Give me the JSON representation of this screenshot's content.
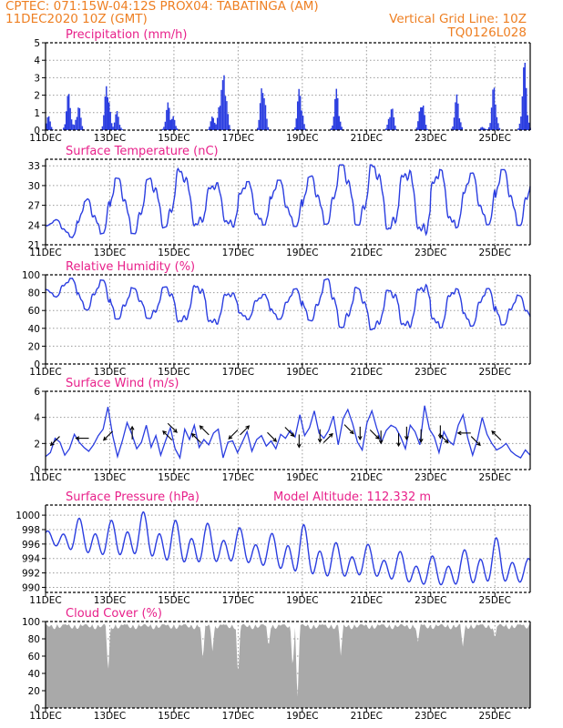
{
  "header": {
    "line1_left": "CPTEC:   071:15W-04:12S   PROX04: TABATINGA (AM)",
    "line2_left": "11DEC2020 10Z (GMT)",
    "line2_right": "Vertical Grid Line: 10Z",
    "line3_right": "TQ0126L028"
  },
  "chart_data": [
    {
      "type": "bar",
      "title": "Precipitation (mm/h)",
      "x_ticks": [
        "11DEC",
        "13DEC",
        "15DEC",
        "17DEC",
        "19DEC",
        "21DEC",
        "23DEC",
        "25DEC"
      ],
      "y_ticks": [
        "0",
        "1",
        "2",
        "3",
        "4",
        "5"
      ],
      "ylim": [
        0,
        5
      ],
      "x_range_days": [
        0,
        15.1
      ],
      "grid": true,
      "color": "#2a3de0",
      "bursts": [
        {
          "day": 0.05,
          "peak": 0.9
        },
        {
          "day": 0.7,
          "peak": 2.2
        },
        {
          "day": 1.0,
          "peak": 1.5
        },
        {
          "day": 1.9,
          "peak": 3.0
        },
        {
          "day": 2.2,
          "peak": 1.1
        },
        {
          "day": 3.8,
          "peak": 1.6
        },
        {
          "day": 3.95,
          "peak": 0.8
        },
        {
          "day": 5.2,
          "peak": 0.9
        },
        {
          "day": 5.45,
          "peak": 2.8
        },
        {
          "day": 5.55,
          "peak": 3.7
        },
        {
          "day": 6.75,
          "peak": 3.1
        },
        {
          "day": 7.9,
          "peak": 2.6
        },
        {
          "day": 9.05,
          "peak": 2.4
        },
        {
          "day": 10.75,
          "peak": 1.5
        },
        {
          "day": 11.7,
          "peak": 2.0
        },
        {
          "day": 12.8,
          "peak": 2.1
        },
        {
          "day": 13.6,
          "peak": 0.2
        },
        {
          "day": 13.95,
          "peak": 2.6
        },
        {
          "day": 14.9,
          "peak": 4.0
        }
      ]
    },
    {
      "type": "line",
      "title": "Surface Temperature (nC)",
      "x_ticks": [
        "11DEC",
        "13DEC",
        "15DEC",
        "17DEC",
        "19DEC",
        "21DEC",
        "23DEC",
        "25DEC"
      ],
      "y_ticks": [
        "21",
        "24",
        "27",
        "30",
        "33"
      ],
      "ylim": [
        21,
        34
      ],
      "grid": true,
      "color": "#2a3de0",
      "daily_max": [
        24,
        26.5,
        31.3,
        30.5,
        32.9,
        30.4,
        30.5,
        30.8,
        30.8,
        33.1,
        33.3,
        32.2,
        32.7,
        31.7,
        32.4,
        32.5
      ],
      "daily_min": [
        23.5,
        21.8,
        23.0,
        22.6,
        24.1,
        23.8,
        23.7,
        24.1,
        23.7,
        24.3,
        23.9,
        23.1,
        22.4,
        23.9,
        24.1,
        23.9
      ]
    },
    {
      "type": "line",
      "title": "Relative Humidity (%)",
      "x_ticks": [
        "11DEC",
        "13DEC",
        "15DEC",
        "17DEC",
        "19DEC",
        "21DEC",
        "23DEC",
        "25DEC"
      ],
      "y_ticks": [
        "0",
        "20",
        "40",
        "60",
        "80",
        "100"
      ],
      "ylim": [
        0,
        100
      ],
      "grid": true,
      "color": "#2a3de0",
      "daily_max": [
        92,
        97,
        93,
        82,
        88,
        88,
        78,
        78,
        86,
        98,
        80,
        84,
        90,
        83,
        85,
        74
      ],
      "daily_min": [
        80,
        65,
        50,
        52,
        48,
        42,
        50,
        50,
        51,
        42,
        38,
        41,
        40,
        42,
        44,
        44
      ]
    },
    {
      "type": "line",
      "title": "Surface Wind (m/s)",
      "x_ticks": [
        "11DEC",
        "13DEC",
        "15DEC",
        "17DEC",
        "19DEC",
        "21DEC",
        "23DEC",
        "25DEC"
      ],
      "y_ticks": [
        "0",
        "2",
        "4",
        "6"
      ],
      "ylim": [
        0,
        6
      ],
      "grid": true,
      "color": "#2a3de0",
      "speed": [
        1.0,
        1.3,
        2.4,
        2.1,
        1.1,
        1.6,
        2.7,
        2.1,
        1.7,
        1.4,
        1.9,
        2.6,
        3.1,
        4.8,
        2.6,
        1.0,
        2.2,
        3.6,
        2.7,
        1.6,
        2.1,
        3.4,
        1.7,
        2.6,
        1.1,
        2.2,
        3.2,
        1.6,
        0.9,
        3.1,
        2.3,
        3.4,
        1.7,
        2.3,
        1.9,
        2.8,
        3.1,
        0.9,
        2.1,
        2.2,
        1.3,
        2.1,
        2.9,
        1.4,
        2.3,
        2.6,
        1.8,
        2.2,
        1.6,
        2.7,
        2.4,
        3.0,
        2.5,
        4.2,
        2.6,
        3.2,
        4.5,
        2.8,
        2.4,
        3.0,
        4.1,
        1.9,
        3.9,
        4.6,
        3.5,
        2.1,
        1.5,
        3.6,
        4.5,
        3.2,
        2.1,
        3.0,
        3.4,
        3.2,
        2.5,
        1.6,
        3.4,
        2.9,
        1.9,
        4.9,
        3.1,
        2.5,
        1.3,
        2.9,
        2.2,
        1.9,
        3.4,
        4.2,
        2.4,
        1.1,
        2.3,
        4.0,
        2.7,
        2.0,
        1.5,
        1.7,
        2.0,
        1.4,
        1.1,
        0.9,
        1.5,
        1.1
      ],
      "arrows": [
        {
          "day": 0.3,
          "speed": 2.2,
          "dir": "sw"
        },
        {
          "day": 1.15,
          "speed": 2.4,
          "dir": "w"
        },
        {
          "day": 1.95,
          "speed": 2.6,
          "dir": "sw"
        },
        {
          "day": 2.7,
          "speed": 2.8,
          "dir": "n"
        },
        {
          "day": 3.8,
          "speed": 2.6,
          "dir": "nw"
        },
        {
          "day": 3.95,
          "speed": 3.2,
          "dir": "se"
        },
        {
          "day": 4.7,
          "speed": 2.4,
          "dir": "nw"
        },
        {
          "day": 4.95,
          "speed": 3.0,
          "dir": "nw"
        },
        {
          "day": 5.85,
          "speed": 2.7,
          "dir": "sw"
        },
        {
          "day": 6.2,
          "speed": 3.0,
          "dir": "ne"
        },
        {
          "day": 7.05,
          "speed": 2.5,
          "dir": "se"
        },
        {
          "day": 7.6,
          "speed": 2.9,
          "dir": "se"
        },
        {
          "day": 7.9,
          "speed": 2.2,
          "dir": "s"
        },
        {
          "day": 8.55,
          "speed": 2.6,
          "dir": "s"
        },
        {
          "day": 8.8,
          "speed": 2.4,
          "dir": "ne"
        },
        {
          "day": 9.45,
          "speed": 3.1,
          "dir": "se"
        },
        {
          "day": 9.8,
          "speed": 2.8,
          "dir": "s"
        },
        {
          "day": 10.25,
          "speed": 2.7,
          "dir": "se"
        },
        {
          "day": 10.45,
          "speed": 2.5,
          "dir": "s"
        },
        {
          "day": 11.0,
          "speed": 2.3,
          "dir": "s"
        },
        {
          "day": 11.25,
          "speed": 2.8,
          "dir": "s"
        },
        {
          "day": 11.7,
          "speed": 2.6,
          "dir": "s"
        },
        {
          "day": 12.3,
          "speed": 2.9,
          "dir": "s"
        },
        {
          "day": 12.4,
          "speed": 2.4,
          "dir": "se"
        },
        {
          "day": 13.05,
          "speed": 2.8,
          "dir": "w"
        },
        {
          "day": 13.4,
          "speed": 2.2,
          "dir": "se"
        },
        {
          "day": 14.05,
          "speed": 2.6,
          "dir": "nw"
        }
      ]
    },
    {
      "type": "line",
      "title": "Surface Pressure (hPa)",
      "annotation": "Model Altitude: 112.332 m",
      "x_ticks": [
        "11DEC",
        "13DEC",
        "15DEC",
        "17DEC",
        "19DEC",
        "21DEC",
        "23DEC",
        "25DEC"
      ],
      "y_ticks": [
        "990",
        "992",
        "994",
        "996",
        "998",
        "1000"
      ],
      "ylim": [
        989.3,
        1001.4
      ],
      "grid": true,
      "color": "#2a3de0",
      "daily_max": [
        997.7,
        999.6,
        999.2,
        1000.5,
        999.3,
        998.9,
        998.3,
        997.4,
        998.8,
        996.2,
        996.0,
        995.0,
        994.3,
        995.1,
        997.0,
        994.0
      ],
      "daily_min": [
        995.8,
        994.1,
        993.5,
        993.6,
        992.4,
        992.5,
        992.8,
        992.0,
        990.8,
        990.5,
        991.0,
        990.2,
        989.5,
        989.6,
        989.8,
        990.0
      ]
    },
    {
      "type": "area",
      "title": "Cloud Cover (%)",
      "x_ticks": [
        "11DEC",
        "13DEC",
        "15DEC",
        "17DEC",
        "19DEC",
        "21DEC",
        "23DEC",
        "25DEC"
      ],
      "y_ticks": [
        "0",
        "20",
        "40",
        "60",
        "80",
        "100"
      ],
      "ylim": [
        0,
        100
      ],
      "grid": true,
      "color": "#a9a9a9",
      "base_level": 97,
      "dips": [
        {
          "day": 1.95,
          "value": 40
        },
        {
          "day": 4.9,
          "value": 55
        },
        {
          "day": 5.2,
          "value": 65
        },
        {
          "day": 6.0,
          "value": 35
        },
        {
          "day": 6.95,
          "value": 70
        },
        {
          "day": 7.7,
          "value": 45
        },
        {
          "day": 7.85,
          "value": 5
        },
        {
          "day": 9.2,
          "value": 60
        },
        {
          "day": 11.6,
          "value": 75
        },
        {
          "day": 13.0,
          "value": 70
        },
        {
          "day": 14.0,
          "value": 80
        }
      ]
    }
  ]
}
